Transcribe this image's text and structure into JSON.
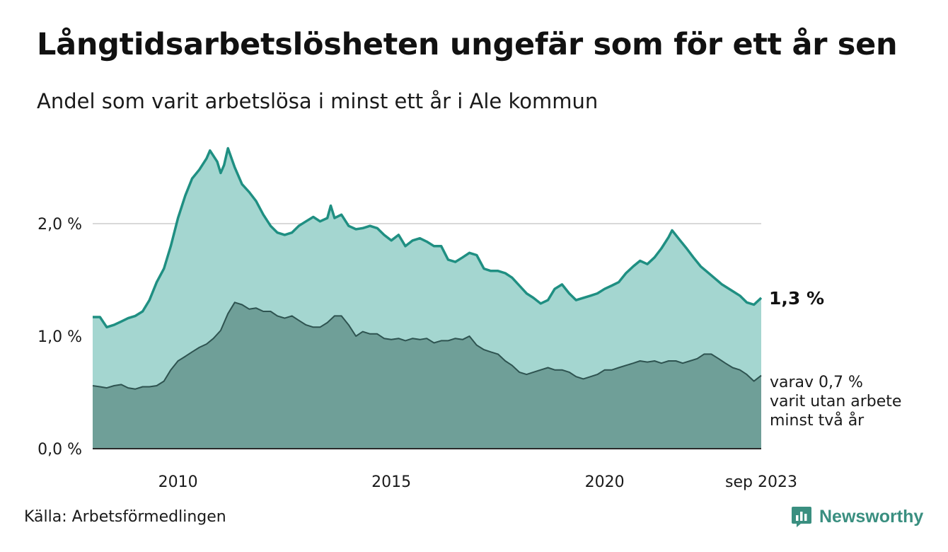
{
  "title": "Långtidsarbetslösheten ungefär som för ett år sen",
  "subtitle": "Andel som varit arbetslösa i minst ett år i Ale kommun",
  "source": "Källa: Arbetsförmedlingen",
  "brand": {
    "name": "Newsworthy",
    "icon": "newsworthy-logo-icon"
  },
  "colors": {
    "area_total": "#a4d6d0",
    "line_total": "#1f8f82",
    "area_two_year": "#6f9f98",
    "line_two_year": "#2e5350",
    "grid": "#d9d9d9"
  },
  "chart_data": {
    "type": "area",
    "title": "Långtidsarbetslösheten ungefär som för ett år sen",
    "xlabel": "",
    "ylabel": "",
    "x_range": [
      2008.0,
      2023.67
    ],
    "ylim": [
      0,
      2.5
    ],
    "yticks": [
      0,
      1.0,
      2.0
    ],
    "ytick_labels": [
      "0,0 %",
      "1,0 %",
      "2,0 %"
    ],
    "xticks": [
      2010,
      2015,
      2020,
      2023.67
    ],
    "xtick_labels": [
      "2010",
      "2015",
      "2020",
      "sep 2023"
    ],
    "grid": true,
    "series": [
      {
        "name": "Minst ett år",
        "end_label": "1,3 %",
        "points": [
          [
            2008.0,
            1.17
          ],
          [
            2008.17,
            1.17
          ],
          [
            2008.33,
            1.08
          ],
          [
            2008.5,
            1.1
          ],
          [
            2008.67,
            1.13
          ],
          [
            2008.83,
            1.16
          ],
          [
            2009.0,
            1.18
          ],
          [
            2009.17,
            1.22
          ],
          [
            2009.33,
            1.32
          ],
          [
            2009.5,
            1.48
          ],
          [
            2009.67,
            1.6
          ],
          [
            2009.83,
            1.8
          ],
          [
            2010.0,
            2.05
          ],
          [
            2010.17,
            2.25
          ],
          [
            2010.33,
            2.4
          ],
          [
            2010.5,
            2.48
          ],
          [
            2010.67,
            2.58
          ],
          [
            2010.75,
            2.65
          ],
          [
            2010.92,
            2.55
          ],
          [
            2011.0,
            2.45
          ],
          [
            2011.08,
            2.52
          ],
          [
            2011.17,
            2.67
          ],
          [
            2011.33,
            2.5
          ],
          [
            2011.5,
            2.35
          ],
          [
            2011.67,
            2.28
          ],
          [
            2011.83,
            2.2
          ],
          [
            2012.0,
            2.08
          ],
          [
            2012.17,
            1.98
          ],
          [
            2012.33,
            1.92
          ],
          [
            2012.5,
            1.9
          ],
          [
            2012.67,
            1.92
          ],
          [
            2012.83,
            1.98
          ],
          [
            2013.0,
            2.02
          ],
          [
            2013.17,
            2.06
          ],
          [
            2013.33,
            2.02
          ],
          [
            2013.5,
            2.05
          ],
          [
            2013.58,
            2.16
          ],
          [
            2013.67,
            2.05
          ],
          [
            2013.83,
            2.08
          ],
          [
            2014.0,
            1.98
          ],
          [
            2014.17,
            1.95
          ],
          [
            2014.33,
            1.96
          ],
          [
            2014.5,
            1.98
          ],
          [
            2014.67,
            1.96
          ],
          [
            2014.83,
            1.9
          ],
          [
            2015.0,
            1.85
          ],
          [
            2015.17,
            1.9
          ],
          [
            2015.33,
            1.8
          ],
          [
            2015.5,
            1.85
          ],
          [
            2015.67,
            1.87
          ],
          [
            2015.83,
            1.84
          ],
          [
            2016.0,
            1.8
          ],
          [
            2016.17,
            1.8
          ],
          [
            2016.33,
            1.68
          ],
          [
            2016.5,
            1.66
          ],
          [
            2016.67,
            1.7
          ],
          [
            2016.83,
            1.74
          ],
          [
            2017.0,
            1.72
          ],
          [
            2017.17,
            1.6
          ],
          [
            2017.33,
            1.58
          ],
          [
            2017.5,
            1.58
          ],
          [
            2017.67,
            1.56
          ],
          [
            2017.83,
            1.52
          ],
          [
            2018.0,
            1.45
          ],
          [
            2018.17,
            1.38
          ],
          [
            2018.33,
            1.34
          ],
          [
            2018.5,
            1.29
          ],
          [
            2018.67,
            1.32
          ],
          [
            2018.83,
            1.42
          ],
          [
            2019.0,
            1.46
          ],
          [
            2019.17,
            1.38
          ],
          [
            2019.33,
            1.32
          ],
          [
            2019.5,
            1.34
          ],
          [
            2019.67,
            1.36
          ],
          [
            2019.83,
            1.38
          ],
          [
            2020.0,
            1.42
          ],
          [
            2020.17,
            1.45
          ],
          [
            2020.33,
            1.48
          ],
          [
            2020.5,
            1.56
          ],
          [
            2020.67,
            1.62
          ],
          [
            2020.83,
            1.67
          ],
          [
            2021.0,
            1.64
          ],
          [
            2021.17,
            1.7
          ],
          [
            2021.33,
            1.78
          ],
          [
            2021.5,
            1.88
          ],
          [
            2021.58,
            1.94
          ],
          [
            2021.75,
            1.86
          ],
          [
            2021.92,
            1.78
          ],
          [
            2022.08,
            1.7
          ],
          [
            2022.25,
            1.62
          ],
          [
            2022.5,
            1.54
          ],
          [
            2022.75,
            1.46
          ],
          [
            2023.0,
            1.4
          ],
          [
            2023.17,
            1.36
          ],
          [
            2023.33,
            1.3
          ],
          [
            2023.5,
            1.28
          ],
          [
            2023.67,
            1.34
          ]
        ]
      },
      {
        "name": "varav minst två år",
        "end_label_lines": [
          "varav 0,7 %",
          "varit utan arbete",
          "minst två år"
        ],
        "points": [
          [
            2008.0,
            0.56
          ],
          [
            2008.17,
            0.55
          ],
          [
            2008.33,
            0.54
          ],
          [
            2008.5,
            0.56
          ],
          [
            2008.67,
            0.57
          ],
          [
            2008.83,
            0.54
          ],
          [
            2009.0,
            0.53
          ],
          [
            2009.17,
            0.55
          ],
          [
            2009.33,
            0.55
          ],
          [
            2009.5,
            0.56
          ],
          [
            2009.67,
            0.6
          ],
          [
            2009.83,
            0.7
          ],
          [
            2010.0,
            0.78
          ],
          [
            2010.17,
            0.82
          ],
          [
            2010.33,
            0.86
          ],
          [
            2010.5,
            0.9
          ],
          [
            2010.67,
            0.93
          ],
          [
            2010.83,
            0.98
          ],
          [
            2011.0,
            1.05
          ],
          [
            2011.17,
            1.2
          ],
          [
            2011.33,
            1.3
          ],
          [
            2011.5,
            1.28
          ],
          [
            2011.67,
            1.24
          ],
          [
            2011.83,
            1.25
          ],
          [
            2012.0,
            1.22
          ],
          [
            2012.17,
            1.22
          ],
          [
            2012.33,
            1.18
          ],
          [
            2012.5,
            1.16
          ],
          [
            2012.67,
            1.18
          ],
          [
            2012.83,
            1.14
          ],
          [
            2013.0,
            1.1
          ],
          [
            2013.17,
            1.08
          ],
          [
            2013.33,
            1.08
          ],
          [
            2013.5,
            1.12
          ],
          [
            2013.67,
            1.18
          ],
          [
            2013.83,
            1.18
          ],
          [
            2014.0,
            1.1
          ],
          [
            2014.17,
            1.0
          ],
          [
            2014.33,
            1.04
          ],
          [
            2014.5,
            1.02
          ],
          [
            2014.67,
            1.02
          ],
          [
            2014.83,
            0.98
          ],
          [
            2015.0,
            0.97
          ],
          [
            2015.17,
            0.98
          ],
          [
            2015.33,
            0.96
          ],
          [
            2015.5,
            0.98
          ],
          [
            2015.67,
            0.97
          ],
          [
            2015.83,
            0.98
          ],
          [
            2016.0,
            0.94
          ],
          [
            2016.17,
            0.96
          ],
          [
            2016.33,
            0.96
          ],
          [
            2016.5,
            0.98
          ],
          [
            2016.67,
            0.97
          ],
          [
            2016.83,
            1.0
          ],
          [
            2017.0,
            0.92
          ],
          [
            2017.17,
            0.88
          ],
          [
            2017.33,
            0.86
          ],
          [
            2017.5,
            0.84
          ],
          [
            2017.67,
            0.78
          ],
          [
            2017.83,
            0.74
          ],
          [
            2018.0,
            0.68
          ],
          [
            2018.17,
            0.66
          ],
          [
            2018.33,
            0.68
          ],
          [
            2018.5,
            0.7
          ],
          [
            2018.67,
            0.72
          ],
          [
            2018.83,
            0.7
          ],
          [
            2019.0,
            0.7
          ],
          [
            2019.17,
            0.68
          ],
          [
            2019.33,
            0.64
          ],
          [
            2019.5,
            0.62
          ],
          [
            2019.67,
            0.64
          ],
          [
            2019.83,
            0.66
          ],
          [
            2020.0,
            0.7
          ],
          [
            2020.17,
            0.7
          ],
          [
            2020.33,
            0.72
          ],
          [
            2020.5,
            0.74
          ],
          [
            2020.67,
            0.76
          ],
          [
            2020.83,
            0.78
          ],
          [
            2021.0,
            0.77
          ],
          [
            2021.17,
            0.78
          ],
          [
            2021.33,
            0.76
          ],
          [
            2021.5,
            0.78
          ],
          [
            2021.67,
            0.78
          ],
          [
            2021.83,
            0.76
          ],
          [
            2022.0,
            0.78
          ],
          [
            2022.17,
            0.8
          ],
          [
            2022.33,
            0.84
          ],
          [
            2022.5,
            0.84
          ],
          [
            2022.67,
            0.8
          ],
          [
            2022.83,
            0.76
          ],
          [
            2023.0,
            0.72
          ],
          [
            2023.17,
            0.7
          ],
          [
            2023.33,
            0.66
          ],
          [
            2023.5,
            0.6
          ],
          [
            2023.67,
            0.65
          ]
        ]
      }
    ]
  }
}
